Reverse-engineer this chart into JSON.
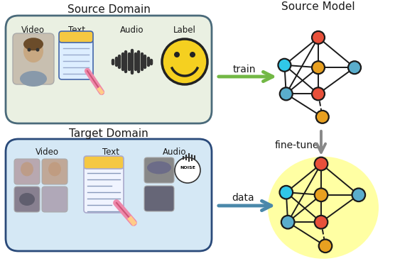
{
  "source_domain_label": "Source Domain",
  "target_domain_label": "Target Domain",
  "source_model_label": "Source Model",
  "source_box_items": [
    "Video",
    "Text",
    "Audio",
    "Label"
  ],
  "target_box_items": [
    "Video",
    "Text",
    "Audio"
  ],
  "train_label": "train",
  "fine_tune_label": "fine-tune",
  "data_label": "data",
  "source_box_color": "#eaf0e2",
  "source_box_edge": "#4a6a7a",
  "target_box_color": "#d5e8f5",
  "target_box_edge": "#2a4a7a",
  "green_arrow_color": "#72b845",
  "gray_arrow_color": "#888888",
  "blue_arrow_color": "#4a88aa",
  "node_red": "#e8503a",
  "node_orange": "#e8a020",
  "node_blue": "#5aadcc",
  "node_cyan": "#30c8e8",
  "node_yellow_glow": "#ffff99",
  "edge_color": "#1a1a1a",
  "text_color": "#1a1a1a",
  "bg_color": "#ffffff",
  "figsize": [
    5.56,
    3.68
  ],
  "dpi": 100
}
